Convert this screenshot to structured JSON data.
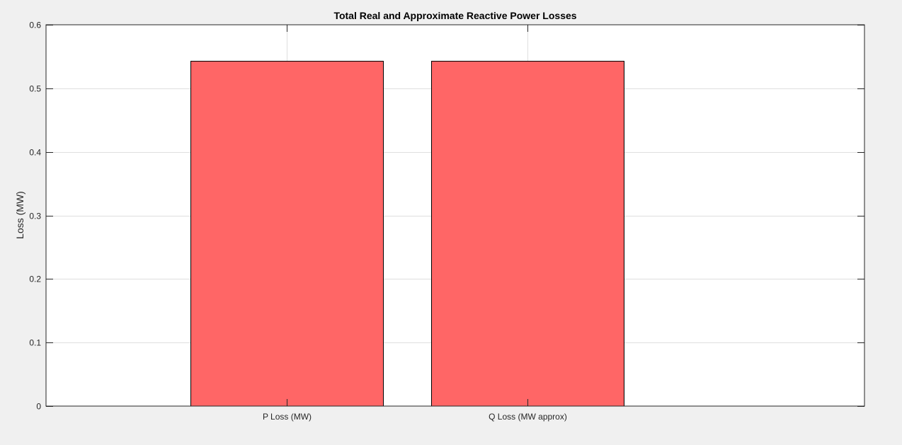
{
  "chart_data": {
    "type": "bar",
    "title": "Total Real and Approximate Reactive Power Losses",
    "xlabel": "",
    "ylabel": "Loss (MW)",
    "categories": [
      "P Loss (MW)",
      "Q Loss (MW approx)"
    ],
    "values": [
      0.543,
      0.543
    ],
    "ylim": [
      0,
      0.6
    ],
    "yticks": [
      0,
      0.1,
      0.2,
      0.3,
      0.4,
      0.5,
      0.6
    ],
    "ytick_labels": [
      "0",
      "0.1",
      "0.2",
      "0.3",
      "0.4",
      "0.5",
      "0.6"
    ],
    "grid": true,
    "legend": "none",
    "bar_color": "#ff6666",
    "bar_edge_color": "#000000",
    "background_color": "#f0f0f0",
    "axes_color": "#ffffff",
    "grid_color": "#dfdfdf"
  }
}
